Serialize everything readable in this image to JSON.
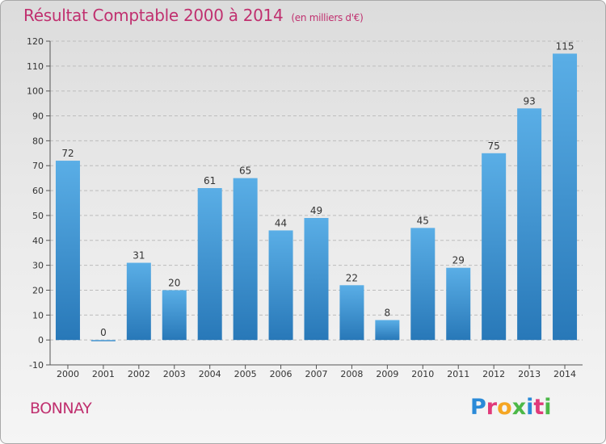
{
  "header": {
    "title": "Résultat Comptable 2000 à 2014",
    "unit": "(en milliers d'€)"
  },
  "footer": {
    "commune": "BONNAY",
    "logo_text": "Proxiti"
  },
  "colors": {
    "title": "#c0306f",
    "bar_light": "#5aaee6",
    "bar_dark": "#2878b8",
    "logo": [
      "#2a8ad8",
      "#e03a7a",
      "#f5a623",
      "#4cb848",
      "#2a8ad8",
      "#e03a7a",
      "#4cb848"
    ]
  },
  "chart_data": {
    "type": "bar",
    "categories": [
      "2000",
      "2001",
      "2002",
      "2003",
      "2004",
      "2005",
      "2006",
      "2007",
      "2008",
      "2009",
      "2010",
      "2011",
      "2012",
      "2013",
      "2014"
    ],
    "values": [
      72,
      0,
      31,
      20,
      61,
      65,
      44,
      49,
      22,
      8,
      45,
      29,
      75,
      93,
      115
    ],
    "title": "Résultat Comptable 2000 à 2014",
    "ylim": [
      -10,
      120
    ],
    "yticks": [
      -10,
      0,
      10,
      20,
      30,
      40,
      50,
      60,
      70,
      80,
      90,
      100,
      110,
      120
    ],
    "grid": true,
    "legend": "none"
  }
}
